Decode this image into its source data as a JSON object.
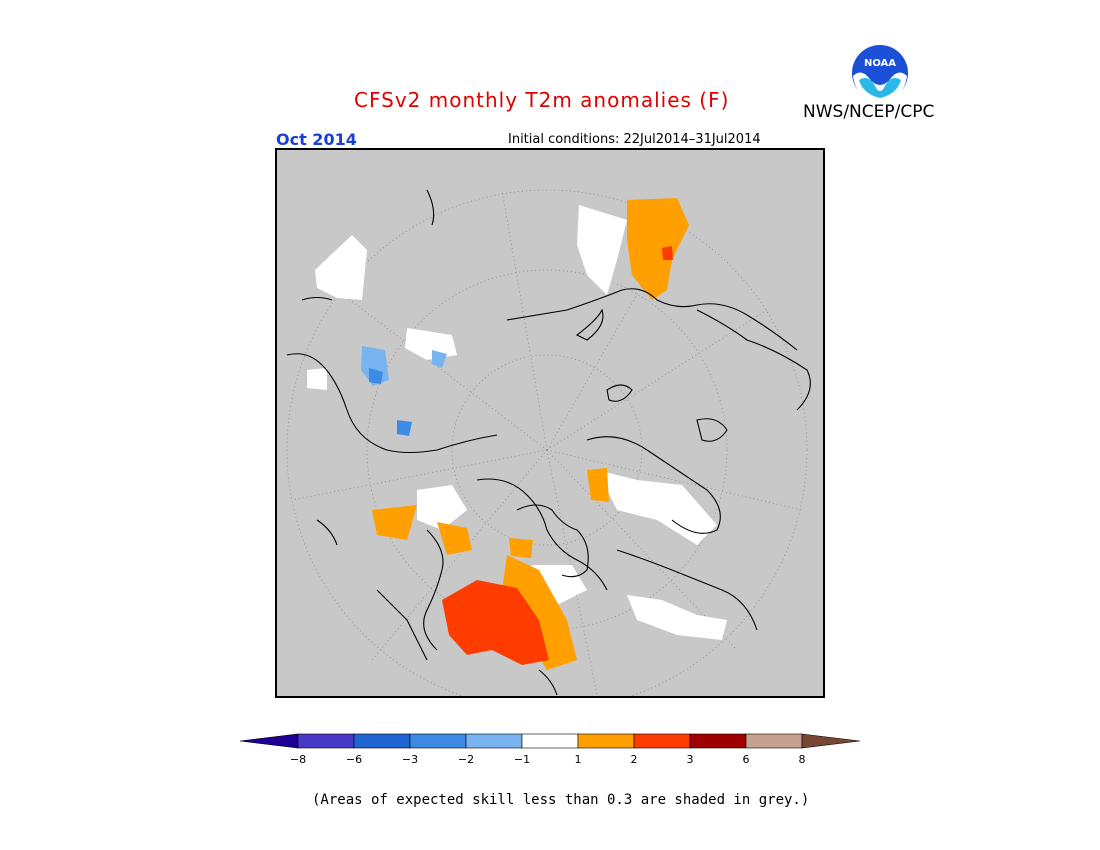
{
  "header": {
    "title": "CFSv2 monthly T2m anomalies (F)",
    "period": "Oct 2014",
    "initial_conditions": "Initial conditions: 22Jul2014–31Jul2014",
    "agency": "NWS/NCEP/CPC",
    "logo_text": "NOAA",
    "logo_icon": "noaa-logo-icon"
  },
  "map": {
    "projection": "north-polar-stereographic",
    "background_color": "#c8c8c8"
  },
  "legend": {
    "ticks": [
      "−8",
      "−6",
      "−3",
      "−2",
      "−1",
      "1",
      "2",
      "3",
      "6",
      "8"
    ],
    "colors": [
      "#1e0096",
      "#4838c8",
      "#1e64d2",
      "#3c8ce6",
      "#78b4f0",
      "#ffffff",
      "#ffa000",
      "#ff3c00",
      "#a00000",
      "#c8a090",
      "#784632"
    ]
  },
  "footnote": "(Areas of expected skill less than 0.3 are shaded in grey.)"
}
